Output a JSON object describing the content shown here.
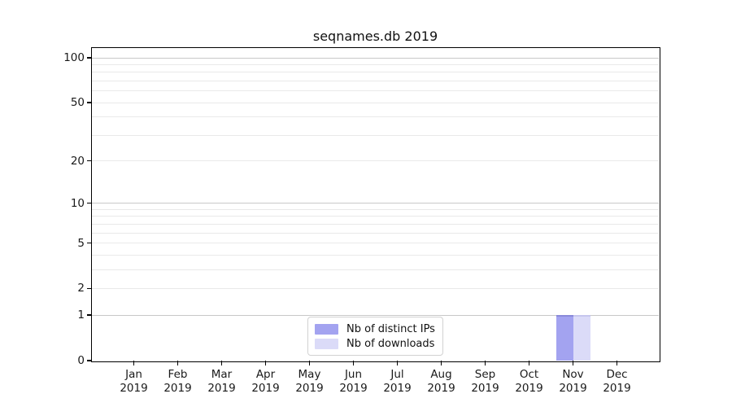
{
  "chart_data": {
    "type": "bar",
    "title": "seqnames.db 2019",
    "x": [
      "Jan",
      "Feb",
      "Mar",
      "Apr",
      "May",
      "Jun",
      "Jul",
      "Aug",
      "Sep",
      "Oct",
      "Nov",
      "Dec"
    ],
    "x_year_line": "2019",
    "series": [
      {
        "name": "Nb of distinct IPs",
        "color": "#a3a3f0",
        "edge_color": "#8a8ada",
        "values": [
          0,
          0,
          0,
          0,
          0,
          0,
          0,
          0,
          0,
          0,
          1,
          0
        ]
      },
      {
        "name": "Nb of downloads",
        "color": "#dbdbf8",
        "edge_color": "#c6c6ee",
        "values": [
          0,
          0,
          0,
          0,
          0,
          0,
          0,
          0,
          0,
          0,
          1,
          0
        ]
      }
    ],
    "yscale": "log1p",
    "ylim": [
      0,
      100
    ],
    "yticks_labeled": [
      0,
      1,
      2,
      5,
      10,
      20,
      50,
      100
    ],
    "yticks_major_grid": [
      1,
      10,
      100
    ],
    "yticks_minor_grid": [
      2,
      3,
      4,
      5,
      6,
      7,
      8,
      9,
      20,
      30,
      40,
      50,
      60,
      70,
      80,
      90
    ],
    "grid": true,
    "legend_position": "lower center",
    "colors": {
      "axis": "#000000",
      "grid_major": "#c8c8c8",
      "grid_minor": "#e9e9e9",
      "text": "#111111",
      "background": "#ffffff"
    }
  }
}
